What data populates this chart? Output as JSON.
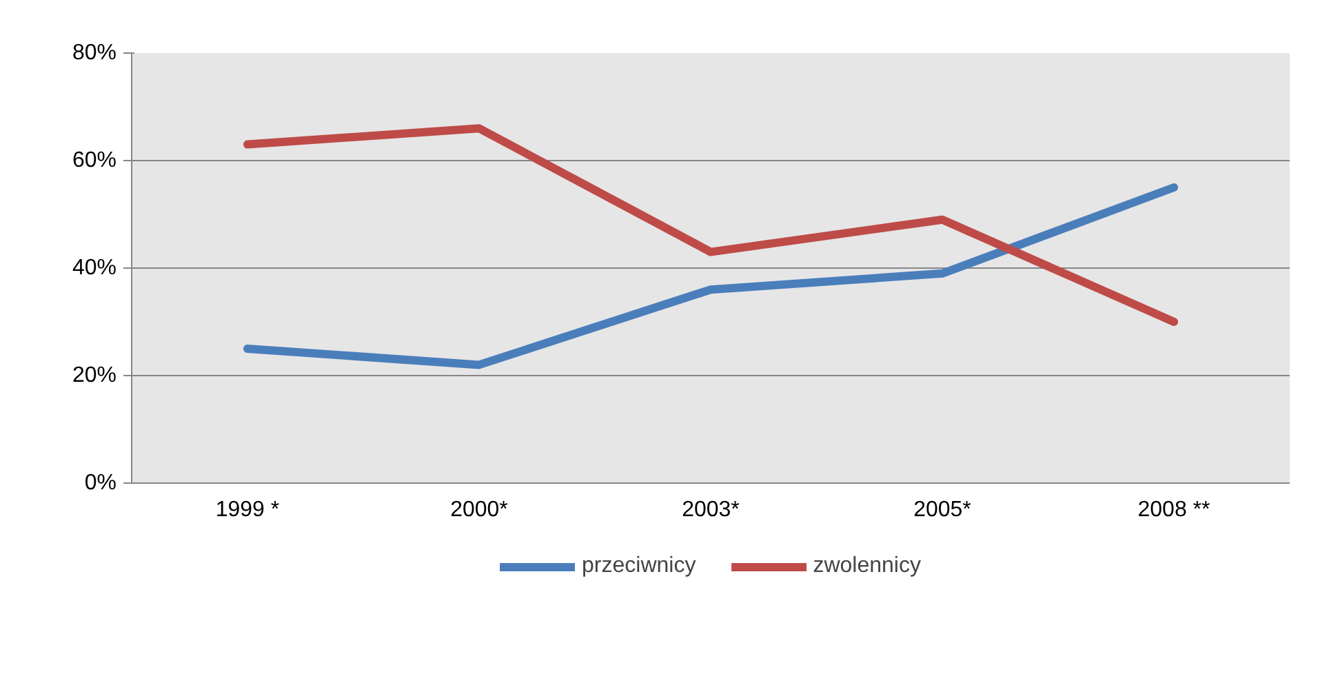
{
  "chart_data": {
    "type": "line",
    "categories": [
      "1999 *",
      "2000*",
      "2003*",
      "2005*",
      "2008 **"
    ],
    "series": [
      {
        "name": "przeciwnicy",
        "color": "#4a7ebb",
        "values": [
          25,
          22,
          36,
          39,
          55
        ]
      },
      {
        "name": "zwolennicy",
        "color": "#be4b48",
        "values": [
          63,
          66,
          43,
          49,
          30
        ]
      }
    ],
    "ylim": [
      0,
      80
    ],
    "yticks": [
      {
        "value": 0,
        "label": "0%"
      },
      {
        "value": 20,
        "label": "20%"
      },
      {
        "value": 40,
        "label": "40%"
      },
      {
        "value": 60,
        "label": "60%"
      },
      {
        "value": 80,
        "label": "80%"
      }
    ],
    "grid": "y",
    "legend": "bottom"
  }
}
